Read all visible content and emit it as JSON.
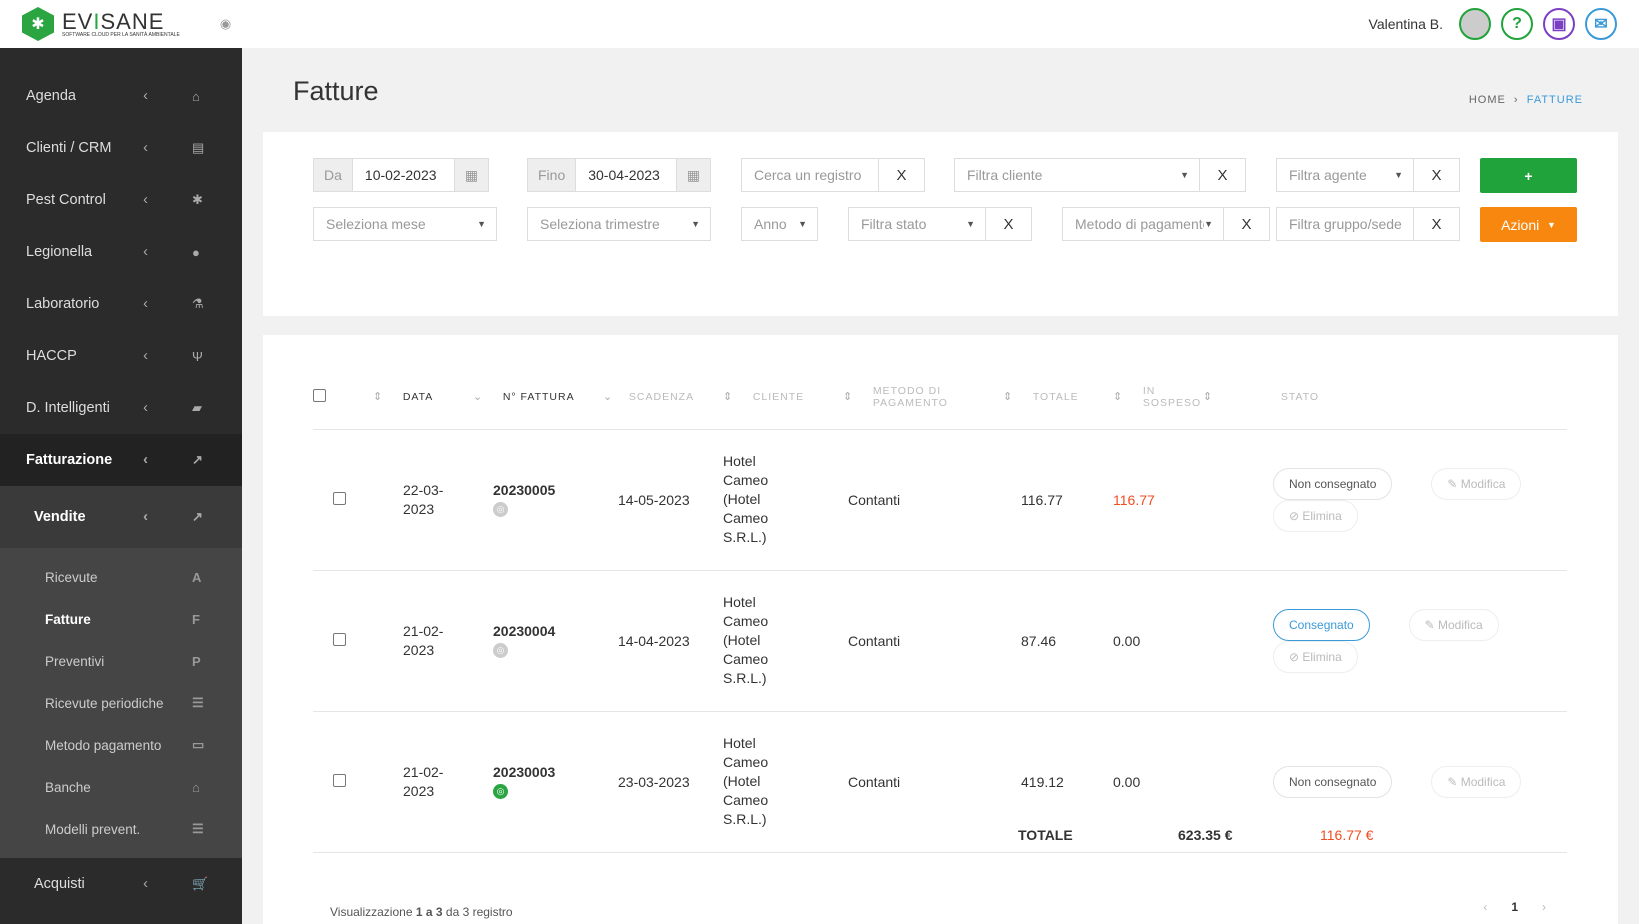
{
  "app": {
    "brand": "EVISANE",
    "tagline": "SOFTWARE CLOUD PER LA SANITÀ AMBIENTALE",
    "user": "Valentina B."
  },
  "sidebar": {
    "items": [
      {
        "label": "Agenda",
        "icon": "home-icon",
        "glyph": "⌂"
      },
      {
        "label": "Clienti / CRM",
        "icon": "id-card-icon",
        "glyph": "▤"
      },
      {
        "label": "Pest Control",
        "icon": "bug-icon",
        "glyph": "✱"
      },
      {
        "label": "Legionella",
        "icon": "drop-icon",
        "glyph": "●"
      },
      {
        "label": "Laboratorio",
        "icon": "flask-icon",
        "glyph": "⚗"
      },
      {
        "label": "HACCP",
        "icon": "cutlery-icon",
        "glyph": "Ψ"
      },
      {
        "label": "D. Intelligenti",
        "icon": "folder-icon",
        "glyph": "▰"
      },
      {
        "label": "Fatturazione",
        "icon": "chart-icon",
        "glyph": "↗"
      }
    ],
    "vendite": {
      "label": "Vendite",
      "glyph": "↗"
    },
    "sub": [
      {
        "label": "Ricevute",
        "glyph": "A"
      },
      {
        "label": "Fatture",
        "glyph": "F"
      },
      {
        "label": "Preventivi",
        "glyph": "P"
      },
      {
        "label": "Ricevute periodiche",
        "glyph": "☰"
      },
      {
        "label": "Metodo pagamento",
        "glyph": "▭"
      },
      {
        "label": "Banche",
        "glyph": "⌂"
      },
      {
        "label": "Modelli prevent.",
        "glyph": "☰"
      }
    ],
    "acquisti": {
      "label": "Acquisti",
      "glyph": "🛒"
    }
  },
  "page": {
    "title": "Fatture",
    "breadcrumb": [
      "HOME",
      "FATTURE"
    ]
  },
  "filters": {
    "da_label": "Da",
    "da": "10-02-2023",
    "fino_label": "Fino",
    "fino": "30-04-2023",
    "search": "Cerca un registro",
    "cliente": "Filtra cliente",
    "agente": "Filtra agente",
    "mese": "Seleziona mese",
    "trimestre": "Seleziona trimestre",
    "anno": "Anno",
    "stato": "Filtra stato",
    "metodo": "Metodo di pagamento",
    "gruppo": "Filtra gruppo/sede",
    "x": "X",
    "azioni": "Azioni",
    "add": "+"
  },
  "colors": {
    "green": "#1fa33a",
    "orange": "#f7870f",
    "blue": "#3a9ad9",
    "red": "#f04e23"
  },
  "table": {
    "headers": [
      "DATA",
      "N° FATTURA",
      "SCADENZA",
      "CLIENTE",
      "METODO DI PAGAMENTO",
      "TOTALE",
      "IN SOSPESO",
      "STATO"
    ],
    "rows": [
      {
        "data": "22-03-2023",
        "numero": "20230005",
        "scadenza": "14-05-2023",
        "cliente": "Hotel Cameo (Hotel Cameo S.R.L.)",
        "metodo": "Contanti",
        "totale": "116.77",
        "sospeso": "116.77",
        "stato": "Non consegnato",
        "sent": false,
        "actions": [
          "Modifica",
          "Elimina"
        ]
      },
      {
        "data": "21-02-2023",
        "numero": "20230004",
        "scadenza": "14-04-2023",
        "cliente": "Hotel Cameo (Hotel Cameo S.R.L.)",
        "metodo": "Contanti",
        "totale": "87.46",
        "sospeso": "0.00",
        "stato": "Consegnato",
        "sent": false,
        "actions": [
          "Modifica",
          "Elimina"
        ]
      },
      {
        "data": "21-02-2023",
        "numero": "20230003",
        "scadenza": "23-03-2023",
        "cliente": "Hotel Cameo (Hotel Cameo S.R.L.)",
        "metodo": "Contanti",
        "totale": "419.12",
        "sospeso": "0.00",
        "stato": "Non consegnato",
        "sent": true,
        "actions": [
          "Modifica"
        ]
      }
    ],
    "totale_label": "TOTALE",
    "totale": "623.35 €",
    "sospeso_totale": "116.77 €"
  },
  "footer": {
    "info_pre": "Visualizzazione",
    "from": "1 a 3",
    "info_post": "da 3 registro",
    "page": "1",
    "prev": "‹",
    "next": "›"
  }
}
